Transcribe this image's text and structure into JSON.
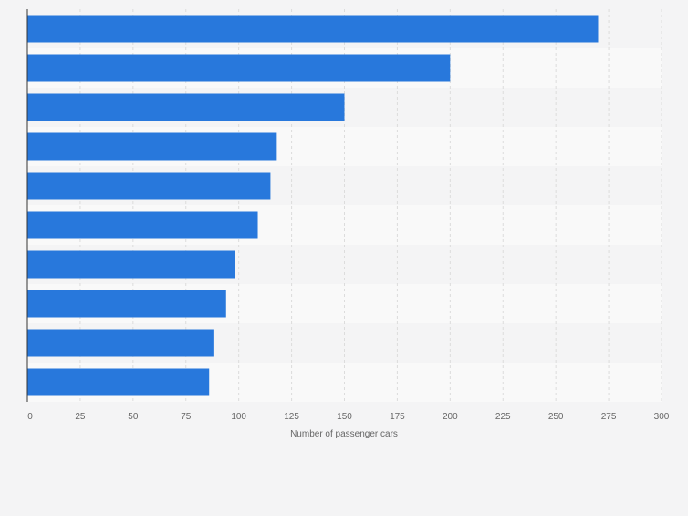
{
  "chart_data": {
    "type": "bar",
    "orientation": "horizontal",
    "categories": [
      "",
      "",
      "",
      "",
      "",
      "",
      "",
      "",
      "",
      ""
    ],
    "values": [
      270,
      200,
      150,
      118,
      115,
      109,
      98,
      94,
      88,
      86
    ],
    "title": "",
    "xlabel": "Number of passenger cars",
    "ylabel": "",
    "xlim": [
      0,
      300
    ],
    "x_ticks": [
      0,
      25,
      50,
      75,
      100,
      125,
      150,
      175,
      200,
      225,
      250,
      275,
      300
    ],
    "grid": true,
    "legend": "none",
    "colors": {
      "bar": "#2878dc",
      "band_light": "#f9f9f9",
      "band_dark": "#f4f4f5",
      "grid": "#dcdcdc",
      "axis": "#333333",
      "tick_text": "#666666"
    }
  }
}
